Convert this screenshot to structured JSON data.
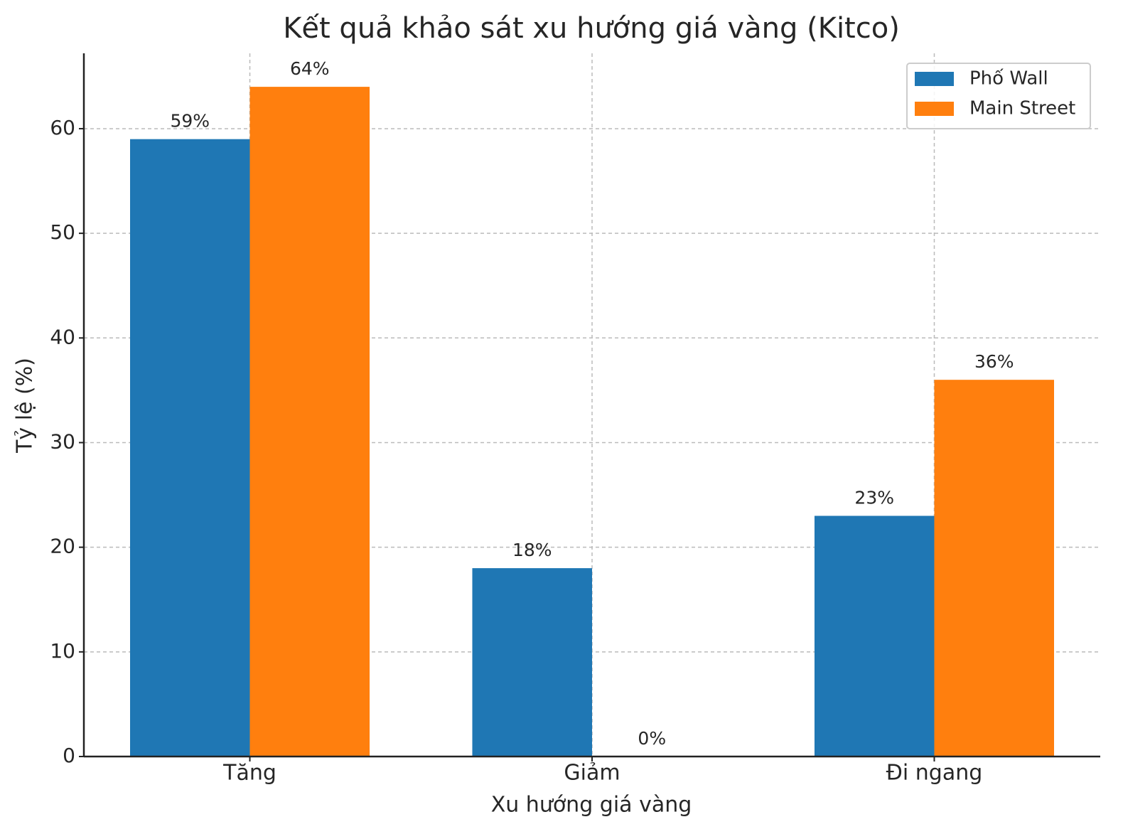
{
  "chart_data": {
    "type": "bar",
    "title": "Kết quả khảo sát xu hướng giá vàng (Kitco)",
    "x_label": "Xu hướng giá vàng",
    "y_label": "Tỷ lệ (%)",
    "categories": [
      "Tăng",
      "Giảm",
      "Đi ngang"
    ],
    "series": [
      {
        "name": "Phố Wall",
        "color": "#1f77b4",
        "values": [
          59,
          18,
          23
        ],
        "value_labels": [
          "59%",
          "18%",
          "23%"
        ]
      },
      {
        "name": "Main Street",
        "color": "#ff7f0e",
        "values": [
          64,
          0,
          36
        ],
        "value_labels": [
          "64%",
          "0%",
          "36%"
        ]
      }
    ],
    "ylim": [
      0,
      67.2
    ],
    "yticks": [
      0,
      10,
      20,
      30,
      40,
      50,
      60
    ],
    "grid": true,
    "legend": "upper right"
  }
}
